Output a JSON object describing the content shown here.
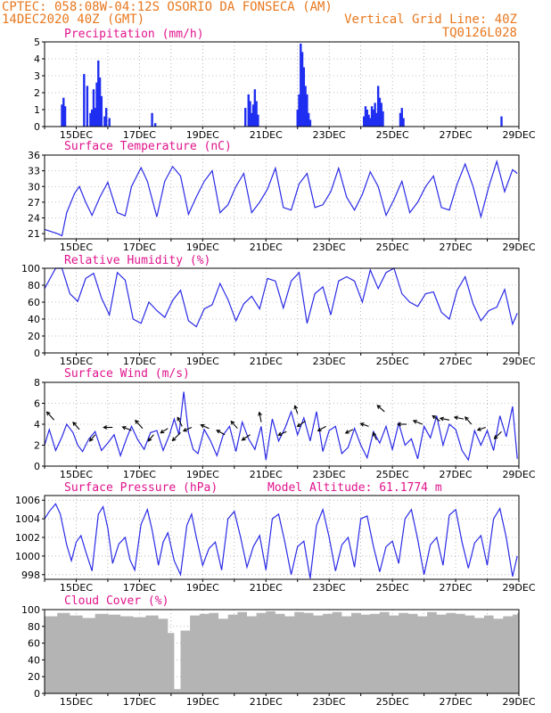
{
  "header": {
    "line1_left": "CPTEC:  058:08W-04:12S  OSORIO DA FONSECA (AM)",
    "line2_left": "14DEC2020 40Z (GMT)",
    "line2_right": "Vertical Grid Line: 40Z",
    "line3_right": "TQ0126L028"
  },
  "colors": {
    "header": "#e8781e",
    "title": "#e0148c",
    "line": "#2a2ae6",
    "bar": "#1f2ef0",
    "cloud": "#b4b4b4",
    "grid": "#888888"
  },
  "x_ticks": [
    "15DEC",
    "17DEC",
    "19DEC",
    "21DEC",
    "23DEC",
    "25DEC",
    "27DEC",
    "29DEC"
  ],
  "chart_data": [
    {
      "id": "precip",
      "type": "bar",
      "title": "Precipitation (mm/h)",
      "x_unit": "days since 14DEC2020 00Z",
      "ylim": [
        0,
        5
      ],
      "yticks": [
        0,
        1,
        2,
        3,
        4,
        5
      ],
      "points": [
        [
          0.55,
          1.3
        ],
        [
          0.6,
          1.7
        ],
        [
          0.65,
          1.2
        ],
        [
          1.25,
          3.1
        ],
        [
          1.35,
          2.4
        ],
        [
          1.45,
          0.8
        ],
        [
          1.5,
          1.0
        ],
        [
          1.55,
          2.2
        ],
        [
          1.6,
          1.1
        ],
        [
          1.65,
          2.6
        ],
        [
          1.7,
          3.9
        ],
        [
          1.75,
          2.9
        ],
        [
          1.8,
          1.8
        ],
        [
          1.9,
          0.6
        ],
        [
          1.95,
          1.1
        ],
        [
          2.05,
          0.5
        ],
        [
          3.4,
          0.8
        ],
        [
          3.5,
          0.2
        ],
        [
          6.35,
          1.1
        ],
        [
          6.45,
          1.9
        ],
        [
          6.5,
          1.5
        ],
        [
          6.55,
          0.8
        ],
        [
          6.6,
          1.3
        ],
        [
          6.65,
          2.2
        ],
        [
          6.7,
          1.5
        ],
        [
          6.75,
          0.7
        ],
        [
          8.0,
          1.0
        ],
        [
          8.05,
          1.9
        ],
        [
          8.1,
          4.9
        ],
        [
          8.15,
          4.4
        ],
        [
          8.2,
          3.5
        ],
        [
          8.25,
          2.4
        ],
        [
          8.3,
          1.9
        ],
        [
          8.35,
          0.8
        ],
        [
          8.4,
          0.4
        ],
        [
          10.1,
          0.6
        ],
        [
          10.15,
          1.2
        ],
        [
          10.2,
          1.0
        ],
        [
          10.25,
          0.7
        ],
        [
          10.3,
          0.5
        ],
        [
          10.35,
          1.2
        ],
        [
          10.4,
          1.0
        ],
        [
          10.45,
          1.4
        ],
        [
          10.5,
          0.8
        ],
        [
          10.55,
          2.4
        ],
        [
          10.6,
          1.7
        ],
        [
          10.65,
          1.4
        ],
        [
          10.7,
          0.9
        ],
        [
          11.25,
          0.8
        ],
        [
          11.3,
          1.1
        ],
        [
          11.35,
          0.5
        ],
        [
          14.45,
          0.6
        ]
      ]
    },
    {
      "id": "temp",
      "type": "line",
      "title": "Surface Temperature (nC)",
      "ylim": [
        20,
        36
      ],
      "yticks": [
        21,
        24,
        27,
        30,
        33,
        36
      ],
      "x": [
        0,
        0.4,
        0.55,
        0.7,
        0.95,
        1.1,
        1.3,
        1.5,
        1.75,
        2.0,
        2.3,
        2.55,
        2.75,
        3.05,
        3.25,
        3.55,
        3.8,
        4.05,
        4.3,
        4.55,
        4.8,
        5.05,
        5.3,
        5.55,
        5.8,
        6.05,
        6.3,
        6.55,
        6.8,
        7.05,
        7.3,
        7.55,
        7.8,
        8.05,
        8.3,
        8.55,
        8.8,
        9.05,
        9.3,
        9.55,
        9.8,
        10.05,
        10.3,
        10.55,
        10.8,
        11.05,
        11.3,
        11.55,
        11.8,
        12.05,
        12.3,
        12.55,
        12.8,
        13.05,
        13.3,
        13.55,
        13.8,
        14.05,
        14.3,
        14.55,
        14.8,
        14.95
      ],
      "y": [
        21.8,
        21,
        20.6,
        25,
        28.7,
        30,
        27,
        24.5,
        28,
        30.8,
        25,
        24.4,
        30,
        33.6,
        31,
        24.2,
        31,
        33.8,
        32,
        24.7,
        28,
        31,
        33,
        25,
        26.5,
        30,
        32.5,
        25,
        27,
        29.5,
        33.5,
        26,
        25.5,
        30.5,
        32.5,
        26,
        26.5,
        29,
        33.5,
        28,
        25.5,
        28.5,
        32.8,
        30,
        24.5,
        27.5,
        31,
        25,
        27,
        30,
        32,
        26,
        25.5,
        30.5,
        34.3,
        30,
        24.2,
        30,
        34.8,
        29,
        33.2,
        32.5
      ]
    },
    {
      "id": "rh",
      "type": "line",
      "title": "Relative Humidity (%)",
      "ylim": [
        0,
        100
      ],
      "yticks": [
        0,
        20,
        40,
        60,
        80,
        100
      ],
      "x": [
        0,
        0.35,
        0.55,
        0.8,
        1.05,
        1.3,
        1.55,
        1.8,
        2.05,
        2.3,
        2.55,
        2.8,
        3.05,
        3.3,
        3.55,
        3.8,
        4.05,
        4.3,
        4.55,
        4.8,
        5.05,
        5.3,
        5.55,
        5.8,
        6.05,
        6.3,
        6.55,
        6.8,
        7.05,
        7.3,
        7.55,
        7.8,
        8.05,
        8.3,
        8.55,
        8.8,
        9.05,
        9.3,
        9.55,
        9.8,
        10.05,
        10.3,
        10.55,
        10.8,
        11.05,
        11.3,
        11.55,
        11.8,
        12.05,
        12.3,
        12.55,
        12.8,
        13.05,
        13.3,
        13.55,
        13.8,
        14.05,
        14.3,
        14.55,
        14.8,
        14.95
      ],
      "y": [
        76,
        100,
        100,
        70,
        61,
        88,
        94,
        65,
        45,
        95,
        86,
        40,
        35,
        60,
        50,
        42,
        62,
        74,
        38,
        31,
        52,
        57,
        82,
        63,
        38,
        58,
        67,
        52,
        88,
        85,
        53,
        85,
        95,
        35,
        70,
        78,
        45,
        85,
        90,
        85,
        60,
        98,
        76,
        95,
        100,
        70,
        60,
        55,
        70,
        72,
        48,
        40,
        74,
        90,
        58,
        38,
        50,
        54,
        75,
        34,
        47
      ]
    },
    {
      "id": "wind",
      "type": "line",
      "title": "Surface Wind (m/s)",
      "ylim": [
        0,
        8
      ],
      "yticks": [
        0,
        2,
        4,
        6,
        8
      ],
      "x": [
        0,
        0.15,
        0.35,
        0.55,
        0.7,
        0.9,
        1.05,
        1.2,
        1.4,
        1.6,
        1.8,
        2.0,
        2.2,
        2.4,
        2.6,
        2.75,
        2.95,
        3.15,
        3.35,
        3.55,
        3.75,
        3.95,
        4.1,
        4.25,
        4.4,
        4.55,
        4.7,
        4.85,
        5.05,
        5.25,
        5.45,
        5.65,
        5.85,
        6.05,
        6.25,
        6.45,
        6.65,
        6.85,
        7.0,
        7.2,
        7.4,
        7.6,
        7.8,
        8.0,
        8.2,
        8.4,
        8.6,
        8.8,
        9.0,
        9.2,
        9.4,
        9.6,
        9.8,
        10.0,
        10.2,
        10.4,
        10.6,
        10.8,
        11.0,
        11.2,
        11.4,
        11.6,
        11.8,
        12.0,
        12.2,
        12.4,
        12.6,
        12.8,
        13.0,
        13.2,
        13.4,
        13.6,
        13.8,
        14.0,
        14.2,
        14.4,
        14.6,
        14.8,
        14.95
      ],
      "y": [
        2.0,
        3.5,
        1.5,
        2.8,
        4.0,
        3.2,
        2.0,
        1.4,
        2.6,
        3.3,
        1.5,
        2.2,
        3.0,
        1.0,
        2.7,
        3.8,
        2.5,
        1.6,
        3.2,
        3.4,
        1.5,
        3.0,
        4.5,
        3.0,
        7.1,
        3.2,
        1.6,
        1.2,
        3.5,
        2.4,
        1.0,
        3.0,
        3.8,
        1.4,
        4.2,
        2.6,
        1.6,
        3.8,
        0.6,
        4.5,
        2.4,
        3.6,
        5.2,
        3.0,
        4.6,
        2.4,
        5.2,
        1.4,
        3.4,
        3.8,
        1.2,
        1.8,
        3.6,
        2.0,
        0.8,
        3.3,
        2.2,
        3.8,
        1.6,
        4.1,
        2.0,
        2.6,
        0.7,
        3.8,
        2.7,
        4.8,
        2.0,
        4.0,
        3.5,
        1.5,
        0.6,
        3.4,
        2.0,
        3.4,
        1.5,
        4.8,
        2.8,
        5.7,
        0.7
      ]
    },
    {
      "id": "wind_vectors",
      "type": "vector",
      "title": "",
      "points": [
        [
          0.3,
          4.4,
          -8,
          -9
        ],
        [
          1.1,
          3.5,
          -7,
          -8
        ],
        [
          1.6,
          3.0,
          -6,
          7
        ],
        [
          2.15,
          3.7,
          -10,
          0
        ],
        [
          2.75,
          3.4,
          -10,
          -4
        ],
        [
          3.1,
          3.6,
          -8,
          -9
        ],
        [
          3.45,
          3.0,
          -6,
          7
        ],
        [
          3.9,
          3.6,
          -8,
          5
        ],
        [
          4.3,
          3.2,
          -9,
          9
        ],
        [
          4.35,
          3.8,
          -5,
          -10
        ],
        [
          4.65,
          3.7,
          -9,
          4
        ],
        [
          5.2,
          3.6,
          -9,
          -4
        ],
        [
          5.7,
          3.0,
          -9,
          -5
        ],
        [
          6.1,
          3.6,
          -7,
          -8
        ],
        [
          6.5,
          3.0,
          -9,
          6
        ],
        [
          6.85,
          4.2,
          -2,
          -11
        ],
        [
          7.65,
          3.3,
          -9,
          4
        ],
        [
          8.0,
          5.0,
          -3,
          -9
        ],
        [
          8.25,
          4.3,
          -9,
          6
        ],
        [
          8.9,
          3.8,
          -9,
          5
        ],
        [
          9.75,
          3.5,
          -8,
          4
        ],
        [
          10.25,
          3.8,
          -9,
          -3
        ],
        [
          10.5,
          2.5,
          -4,
          -8
        ],
        [
          10.75,
          5.2,
          -8,
          -7
        ],
        [
          11.45,
          4.0,
          -10,
          0
        ],
        [
          11.95,
          4.0,
          -10,
          -4
        ],
        [
          12.5,
          4.3,
          -8,
          -6
        ],
        [
          12.8,
          4.4,
          -10,
          -2
        ],
        [
          13.25,
          4.5,
          -10,
          -2
        ],
        [
          13.5,
          4.0,
          -7,
          -8
        ],
        [
          13.95,
          3.7,
          -9,
          3
        ],
        [
          14.45,
          3.3,
          -8,
          8
        ]
      ]
    },
    {
      "id": "pres",
      "type": "line",
      "title": "Surface Pressure (hPa)",
      "annotation": "Model Altitude: 61.1774 m",
      "ylim": [
        997.5,
        1006.5
      ],
      "yticks": [
        998,
        1000,
        1002,
        1004,
        1006
      ],
      "x": [
        0,
        0.15,
        0.35,
        0.5,
        0.7,
        0.85,
        1.0,
        1.15,
        1.3,
        1.5,
        1.7,
        1.85,
        2.0,
        2.15,
        2.35,
        2.55,
        2.7,
        2.85,
        3.05,
        3.25,
        3.4,
        3.6,
        3.75,
        3.9,
        4.1,
        4.3,
        4.5,
        4.65,
        4.8,
        5.0,
        5.2,
        5.4,
        5.6,
        5.8,
        6.0,
        6.2,
        6.4,
        6.6,
        6.8,
        7.0,
        7.2,
        7.4,
        7.6,
        7.8,
        8.0,
        8.2,
        8.4,
        8.6,
        8.8,
        9.0,
        9.2,
        9.4,
        9.6,
        9.8,
        10.0,
        10.2,
        10.4,
        10.6,
        10.8,
        11.0,
        11.2,
        11.4,
        11.6,
        11.8,
        12.0,
        12.2,
        12.4,
        12.6,
        12.8,
        13.0,
        13.2,
        13.4,
        13.6,
        13.8,
        14.0,
        14.2,
        14.4,
        14.6,
        14.8,
        14.95
      ],
      "y": [
        1004.0,
        1004.8,
        1005.6,
        1004.5,
        1001.2,
        999.5,
        1001.5,
        1002.2,
        1000.5,
        998.4,
        1004.5,
        1005.3,
        1003.0,
        999.2,
        1001.3,
        1002.0,
        999.6,
        998.5,
        1003.4,
        1005.0,
        1002.8,
        999.0,
        1001.5,
        1002.5,
        999.5,
        998.0,
        1003.3,
        1004.5,
        1002.0,
        999.0,
        1000.8,
        1001.5,
        998.5,
        1004.0,
        1004.8,
        1002.0,
        998.8,
        1001.0,
        1002.2,
        998.5,
        1004.0,
        1004.5,
        1001.5,
        998.0,
        1001.0,
        1001.6,
        997.6,
        1003.3,
        1005.0,
        1002.0,
        998.4,
        1001.2,
        1002.0,
        998.8,
        1004.0,
        1004.3,
        1001.0,
        998.3,
        1001.0,
        1001.6,
        999.2,
        1004.0,
        1005.0,
        1001.8,
        998.0,
        1001.2,
        1002.0,
        999.0,
        1004.4,
        1005.0,
        1001.5,
        998.7,
        1001.4,
        1002.2,
        999.0,
        1004.0,
        1005.1,
        1002.0,
        997.8,
        1000.0
      ]
    },
    {
      "id": "cloud",
      "type": "area",
      "title": "Cloud Cover (%)",
      "ylim": [
        0,
        100
      ],
      "yticks": [
        0,
        20,
        40,
        60,
        80,
        100
      ],
      "x": [
        0,
        0.4,
        0.8,
        1.2,
        1.6,
        2.0,
        2.4,
        2.8,
        3.2,
        3.6,
        3.9,
        4.1,
        4.3,
        4.6,
        4.9,
        5.2,
        5.5,
        5.8,
        6.1,
        6.4,
        6.7,
        7.0,
        7.3,
        7.6,
        7.9,
        8.2,
        8.5,
        8.8,
        9.1,
        9.4,
        9.7,
        10.0,
        10.3,
        10.6,
        10.9,
        11.2,
        11.5,
        11.8,
        12.1,
        12.4,
        12.7,
        13.0,
        13.3,
        13.6,
        13.9,
        14.2,
        14.5,
        14.8,
        14.95
      ],
      "y": [
        92,
        96,
        93,
        90,
        95,
        94,
        92,
        91,
        93,
        89,
        72,
        5,
        75,
        93,
        95,
        96,
        89,
        94,
        97,
        92,
        96,
        98,
        95,
        92,
        97,
        96,
        93,
        95,
        97,
        92,
        96,
        94,
        95,
        97,
        93,
        96,
        95,
        92,
        97,
        94,
        96,
        95,
        93,
        90,
        93,
        89,
        92,
        94,
        96
      ]
    }
  ]
}
